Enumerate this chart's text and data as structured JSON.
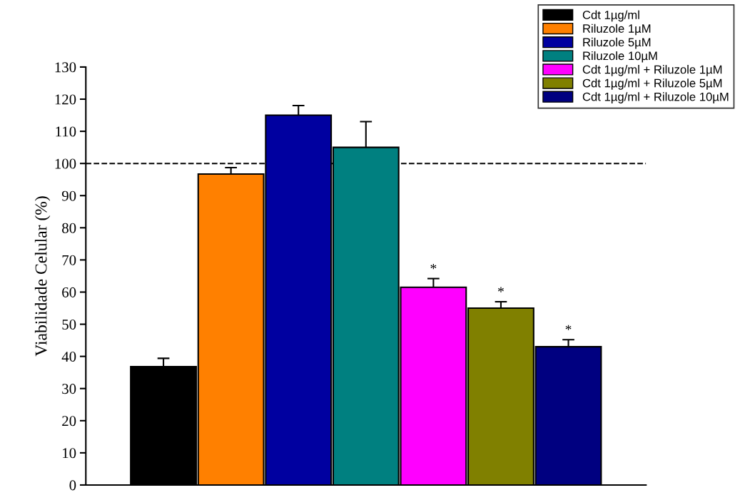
{
  "chart_data": {
    "type": "bar",
    "ylabel": "Viabilidade Celular (%)",
    "categories": [
      null,
      null,
      null,
      null,
      null,
      null,
      null
    ],
    "series": [
      {
        "name": "Cdt 1µg/ml",
        "color": "#000000",
        "values": [
          36.8,
          null,
          null,
          null,
          null,
          null,
          null
        ],
        "errors": [
          2.6,
          null,
          null,
          null,
          null,
          null,
          null
        ]
      },
      {
        "name": "Riluzole 1µM",
        "color": "#ff8000",
        "values": [
          null,
          96.7,
          null,
          null,
          null,
          null,
          null
        ],
        "errors": [
          null,
          2,
          null,
          null,
          null,
          null,
          null
        ]
      },
      {
        "name": "Riluzole 5µM",
        "color": "#0000a0",
        "values": [
          null,
          null,
          115,
          null,
          null,
          null,
          null
        ],
        "errors": [
          null,
          null,
          3,
          null,
          null,
          null,
          null
        ]
      },
      {
        "name": "Riluzole 10µM",
        "color": "#008080",
        "values": [
          null,
          null,
          null,
          105,
          null,
          null,
          null
        ],
        "errors": [
          null,
          null,
          null,
          8,
          null,
          null,
          null
        ]
      },
      {
        "name": "Cdt 1µg/ml + Riluzole 1µM",
        "color": "#ff00ff",
        "values": [
          null,
          null,
          null,
          null,
          61.5,
          null,
          null
        ],
        "errors": [
          null,
          null,
          null,
          null,
          2.7,
          null,
          null
        ],
        "value_labels": [
          null,
          null,
          null,
          null,
          "*",
          null,
          null
        ]
      },
      {
        "name": "Cdt 1µg/ml + Riluzole 5µM",
        "color": "#808000",
        "values": [
          null,
          null,
          null,
          null,
          null,
          55,
          null
        ],
        "errors": [
          null,
          null,
          null,
          null,
          null,
          2,
          null
        ],
        "value_labels": [
          null,
          null,
          null,
          null,
          null,
          "*",
          null
        ]
      },
      {
        "name": "Cdt 1µg/ml + Riluzole 10µM",
        "color": "#000080",
        "values": [
          null,
          null,
          null,
          null,
          null,
          null,
          43
        ],
        "errors": [
          null,
          null,
          null,
          null,
          null,
          null,
          2.2
        ],
        "value_labels": [
          null,
          null,
          null,
          null,
          null,
          null,
          "*"
        ]
      }
    ],
    "ylim": [
      0,
      130
    ],
    "yticks": [
      0,
      10,
      20,
      30,
      40,
      50,
      60,
      70,
      80,
      90,
      100,
      110,
      120,
      130
    ],
    "ref_lines": [
      {
        "axis": "y",
        "value": 100,
        "color": "#000000",
        "line_style": "dashed"
      }
    ],
    "grid": false,
    "legend": "top right"
  }
}
